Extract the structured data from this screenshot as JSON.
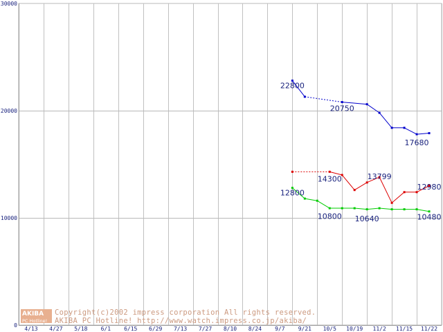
{
  "chart_data": {
    "type": "line",
    "title": "",
    "xlabel": "",
    "ylabel": "",
    "ylim": [
      0,
      30000
    ],
    "y_ticks": [
      "30000",
      "20000",
      "10000",
      "0"
    ],
    "grid": true,
    "x_ticks": [
      "4/13",
      "4/27",
      "5/18",
      "6/1",
      "6/15",
      "6/29",
      "7/13",
      "7/27",
      "8/10",
      "8/24",
      "9/7",
      "9/21",
      "10/5",
      "10/19",
      "11/2",
      "11/15",
      "11/22"
    ],
    "series": [
      {
        "color": "#0000cc",
        "points": [
          [
            10.0,
            22800
          ],
          [
            10.5,
            21300
          ],
          [
            12.0,
            20800
          ],
          [
            13.0,
            20600
          ],
          [
            13.5,
            19800
          ],
          [
            14.0,
            18400
          ],
          [
            14.5,
            18400
          ],
          [
            15.0,
            17800
          ],
          [
            15.5,
            17900
          ]
        ],
        "dashed_segments": [
          [
            1,
            2
          ]
        ],
        "labels": [
          {
            "text": "22800",
            "x": 10.0,
            "y": 22800
          },
          {
            "text": "20750",
            "x": 12.0,
            "y": 20750
          },
          {
            "text": "17680",
            "x": 15.0,
            "y": 17680
          }
        ]
      },
      {
        "color": "#dd0000",
        "points": [
          [
            10.0,
            14300
          ],
          [
            11.5,
            14300
          ],
          [
            12.0,
            14000
          ],
          [
            12.5,
            12600
          ],
          [
            13.0,
            13300
          ],
          [
            13.5,
            13800
          ],
          [
            14.0,
            11400
          ],
          [
            14.5,
            12400
          ],
          [
            15.0,
            12400
          ],
          [
            15.5,
            13000
          ]
        ],
        "dashed_segments": [
          [
            0,
            1
          ]
        ],
        "labels": [
          {
            "text": "14300",
            "x": 11.5,
            "y": 14300
          },
          {
            "text": "13799",
            "x": 13.5,
            "y": 13800
          },
          {
            "text": "12980",
            "x": 15.5,
            "y": 12980
          }
        ]
      },
      {
        "color": "#00cc00",
        "points": [
          [
            10.0,
            12800
          ],
          [
            10.5,
            11800
          ],
          [
            11.0,
            11600
          ],
          [
            11.5,
            10900
          ],
          [
            12.0,
            10900
          ],
          [
            12.5,
            10900
          ],
          [
            13.0,
            10800
          ],
          [
            13.5,
            10900
          ],
          [
            14.0,
            10800
          ],
          [
            14.5,
            10800
          ],
          [
            15.0,
            10800
          ],
          [
            15.5,
            10600
          ]
        ],
        "dashed_segments": [],
        "labels": [
          {
            "text": "12800",
            "x": 10.0,
            "y": 12800
          },
          {
            "text": "10800",
            "x": 11.5,
            "y": 10800
          },
          {
            "text": "10640",
            "x": 13.0,
            "y": 10640
          },
          {
            "text": "10480",
            "x": 15.5,
            "y": 10480
          }
        ]
      }
    ]
  },
  "watermark": {
    "logo_top": "AKIBA",
    "logo_bottom": "PC Hotline!",
    "line1": "Copyright(c)2002 impress corporation All rights reserved.",
    "line2": "AKIBA PC Hotline!  http://www.watch.impress.co.jp/akiba/"
  }
}
